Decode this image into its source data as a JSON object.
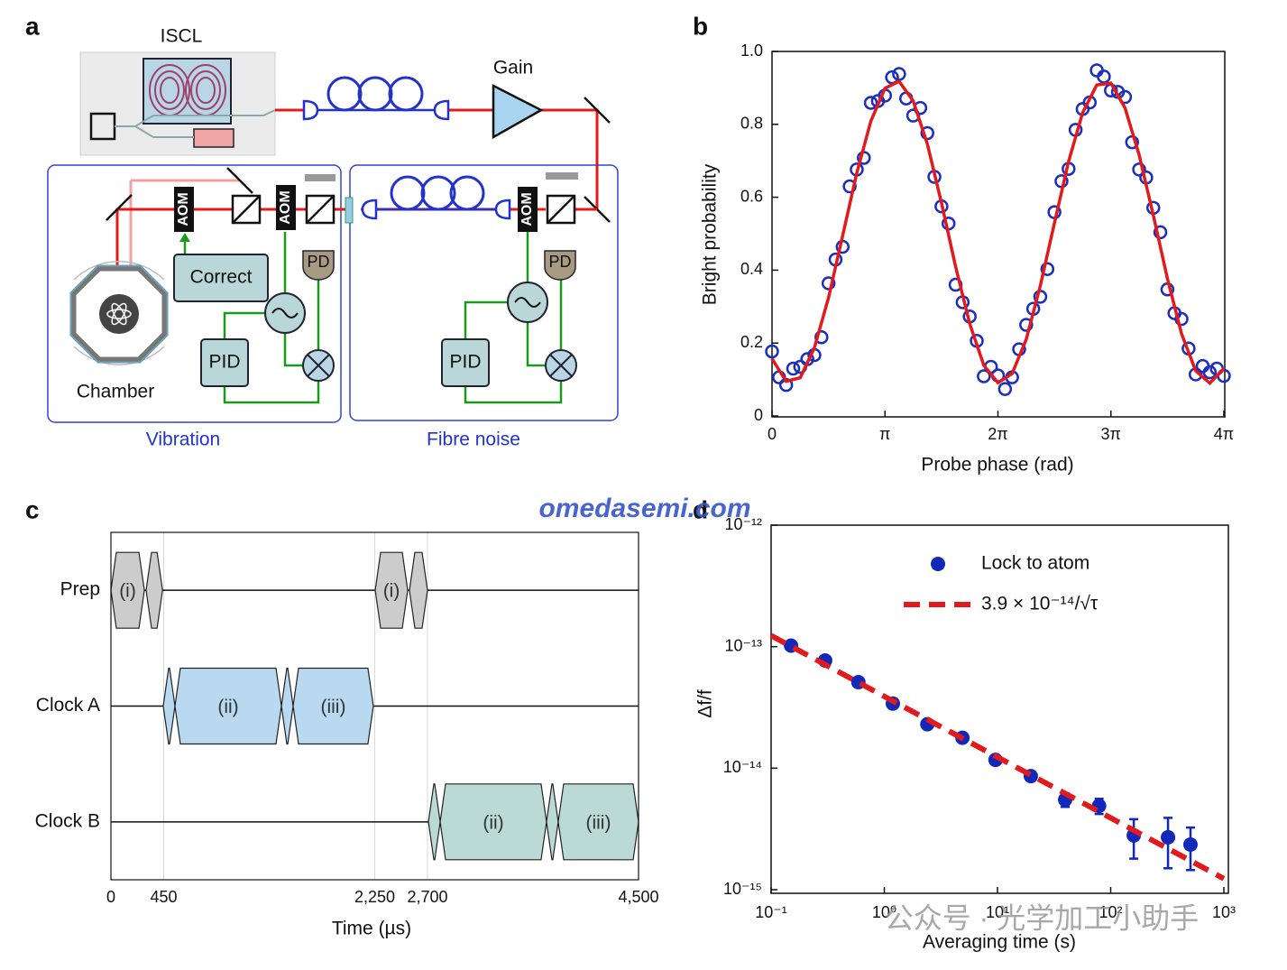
{
  "panels": [
    "a",
    "b",
    "c",
    "d"
  ],
  "watermarks": [
    "omedasemi.com",
    "公众号 · 光学加工小助手"
  ],
  "diagram": {
    "iscl": "ISCL",
    "gain": "Gain",
    "vibration": {
      "label": "Vibration",
      "aom": [
        "AOM",
        "AOM"
      ],
      "correct": "Correct",
      "pd": "PD",
      "pid": "PID",
      "chamber": "Chamber"
    },
    "fibre_noise": {
      "label": "Fibre noise",
      "aom": "AOM",
      "pd": "PD",
      "pid": "PID"
    }
  },
  "chart_data": [
    {
      "type": "scatter",
      "xlabel": "Probe phase (rad)",
      "ylabel": "Bright probability",
      "xlim": [
        0,
        12.566
      ],
      "ylim": [
        0,
        1
      ],
      "xticks": [
        0,
        {
          "value": 3.142,
          "label": "π"
        },
        {
          "value": 6.283,
          "label": "2π"
        },
        {
          "value": 9.425,
          "label": "3π"
        },
        {
          "value": 12.566,
          "label": "4π"
        }
      ],
      "yticks": [
        0,
        0.2,
        0.4,
        0.6,
        0.8,
        {
          "value": 1,
          "label": "1.0"
        }
      ],
      "series": [
        {
          "mode": "markers",
          "marker": "open",
          "color": "#1a2fbf",
          "x": [
            0,
            0.196,
            0.393,
            0.589,
            0.785,
            0.982,
            1.178,
            1.374,
            1.571,
            1.767,
            1.963,
            2.16,
            2.356,
            2.553,
            2.749,
            2.945,
            3.142,
            3.338,
            3.534,
            3.731,
            3.927,
            4.123,
            4.32,
            4.516,
            4.712,
            4.909,
            5.105,
            5.301,
            5.498,
            5.694,
            5.89,
            6.087,
            6.283,
            6.48,
            6.676,
            6.872,
            7.069,
            7.265,
            7.461,
            7.658,
            7.854,
            8.05,
            8.247,
            8.443,
            8.639,
            8.836,
            9.032,
            9.228,
            9.425,
            9.621,
            9.817,
            10.014,
            10.21,
            10.407,
            10.603,
            10.799,
            10.996,
            11.192,
            11.388,
            11.585,
            11.781,
            11.977,
            12.174,
            12.37,
            12.566
          ],
          "values": [
            0.177,
            0.106,
            0.085,
            0.13,
            0.135,
            0.156,
            0.167,
            0.216,
            0.364,
            0.429,
            0.464,
            0.63,
            0.676,
            0.708,
            0.859,
            0.864,
            0.879,
            0.929,
            0.938,
            0.871,
            0.824,
            0.845,
            0.776,
            0.656,
            0.575,
            0.528,
            0.36,
            0.312,
            0.273,
            0.206,
            0.109,
            0.135,
            0.111,
            0.074,
            0.106,
            0.183,
            0.25,
            0.294,
            0.327,
            0.403,
            0.559,
            0.644,
            0.678,
            0.785,
            0.842,
            0.86,
            0.948,
            0.931,
            0.893,
            0.889,
            0.875,
            0.751,
            0.676,
            0.654,
            0.571,
            0.504,
            0.347,
            0.282,
            0.266,
            0.185,
            0.114,
            0.137,
            0.12,
            0.13,
            0.11
          ]
        },
        {
          "mode": "line",
          "color": "#e31a1c",
          "x": [
            0,
            0.393,
            0.785,
            1.178,
            1.571,
            1.963,
            2.356,
            2.749,
            3.142,
            3.534,
            3.927,
            4.32,
            4.712,
            5.105,
            5.498,
            5.89,
            6.283,
            6.676,
            7.069,
            7.461,
            7.854,
            8.247,
            8.639,
            9.032,
            9.425,
            9.817,
            10.21,
            10.603,
            10.996,
            11.388,
            11.781,
            12.174,
            12.566
          ],
          "values": [
            0.157,
            0.095,
            0.105,
            0.187,
            0.324,
            0.494,
            0.666,
            0.809,
            0.899,
            0.918,
            0.864,
            0.746,
            0.585,
            0.41,
            0.253,
            0.139,
            0.091,
            0.116,
            0.21,
            0.357,
            0.529,
            0.698,
            0.832,
            0.908,
            0.913,
            0.845,
            0.716,
            0.551,
            0.377,
            0.226,
            0.124,
            0.09,
            0.13
          ]
        }
      ]
    },
    {
      "type": "timeline",
      "xlabel": "Time (µs)",
      "xlim": [
        0,
        4500
      ],
      "xticks": [
        0,
        450,
        {
          "value": 2250,
          "label": "2,250"
        },
        {
          "value": 2700,
          "label": "2,700"
        },
        {
          "value": 4500,
          "label": "4,500"
        }
      ],
      "grid": true,
      "rows": [
        {
          "name": "Prep",
          "color": "#cccccc",
          "blocks": [
            {
              "start": 0,
              "end": 285,
              "label": "(i)"
            },
            {
              "start": 300,
              "end": 440
            },
            {
              "start": 2254,
              "end": 2531,
              "label": "(i)"
            },
            {
              "start": 2546,
              "end": 2700
            }
          ]
        },
        {
          "name": "Clock A",
          "color": "#b9d9f0",
          "blocks": [
            {
              "start": 446,
              "end": 546
            },
            {
              "start": 546,
              "end": 1454,
              "label": "(ii)"
            },
            {
              "start": 1454,
              "end": 1554
            },
            {
              "start": 1554,
              "end": 2238,
              "label": "(iii)"
            }
          ]
        },
        {
          "name": "Clock B",
          "color": "#bcdad5",
          "blocks": [
            {
              "start": 2708,
              "end": 2808
            },
            {
              "start": 2808,
              "end": 3715,
              "label": "(ii)"
            },
            {
              "start": 3715,
              "end": 3815
            },
            {
              "start": 3815,
              "end": 4500,
              "label": "(iii)"
            }
          ]
        }
      ]
    },
    {
      "type": "scatter",
      "xlabel": "Averaging time (s)",
      "ylabel": "Δf/f",
      "xscale": "log",
      "yscale": "log",
      "xlim": [
        0.1,
        1000
      ],
      "ylim": [
        1e-15,
        1e-12
      ],
      "xticks": [
        {
          "value": 0.1,
          "label": "10⁻¹"
        },
        {
          "value": 1,
          "label": "10⁰"
        },
        {
          "value": 10,
          "label": "10¹"
        },
        {
          "value": 100,
          "label": "10²"
        },
        {
          "value": 1000,
          "label": "10³"
        }
      ],
      "yticks": [
        {
          "value": 1e-15,
          "label": "10⁻¹⁵"
        },
        {
          "value": 1e-14,
          "label": "10⁻¹⁴"
        },
        {
          "value": 1e-13,
          "label": "10⁻¹³"
        },
        {
          "value": 1e-12,
          "label": "10⁻¹²"
        }
      ],
      "legend": "upper right",
      "series": [
        {
          "name": "Lock to atom",
          "mode": "markers",
          "marker": "filled",
          "color": "#1228b8",
          "x": [
            0.15,
            0.3,
            0.59,
            1.19,
            2.4,
            4.9,
            9.6,
            19.7,
            39.6,
            79,
            160,
            321,
            507
          ],
          "values": [
            1.02e-13,
            7.7e-14,
            5.1e-14,
            3.4e-14,
            2.3e-14,
            1.78e-14,
            1.17e-14,
            8.6e-15,
            5.5e-15,
            4.9e-15,
            2.8e-15,
            2.7e-15,
            2.35e-15
          ],
          "errors": [
            8e-15,
            6e-15,
            4e-15,
            2.5e-15,
            1.8e-15,
            1.4e-15,
            1e-15,
            7e-16,
            7e-16,
            7e-16,
            1e-15,
            1.2e-15,
            9e-16
          ]
        },
        {
          "name": "3.9 × 10⁻¹⁴/√τ",
          "mode": "line",
          "dashed": true,
          "color": "#e31a1c",
          "x": [
            0.1,
            1000
          ],
          "values": [
            1.233e-13,
            1.233e-15
          ]
        }
      ]
    }
  ]
}
